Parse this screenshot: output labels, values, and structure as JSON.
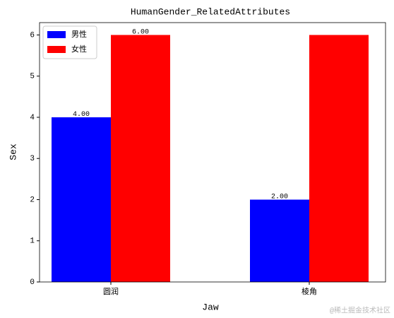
{
  "chart_data": {
    "type": "bar",
    "title": "HumanGender_RelatedAttributes",
    "x_label": "Jaw",
    "y_label": "Sex",
    "categories": [
      "圆润",
      "棱角"
    ],
    "series": [
      {
        "name": "男性",
        "color": "#0000ff",
        "values": [
          4,
          2
        ],
        "value_labels": [
          "4.00",
          "2.00"
        ]
      },
      {
        "name": "女性",
        "color": "#ff0000",
        "values": [
          6,
          6
        ],
        "value_labels": [
          "6.00",
          null
        ]
      }
    ],
    "ylim": [
      0,
      6.3
    ],
    "yticks": [
      0,
      1,
      2,
      3,
      4,
      5,
      6
    ],
    "legend": "upper left",
    "watermark": "@稀土掘金技术社区"
  }
}
